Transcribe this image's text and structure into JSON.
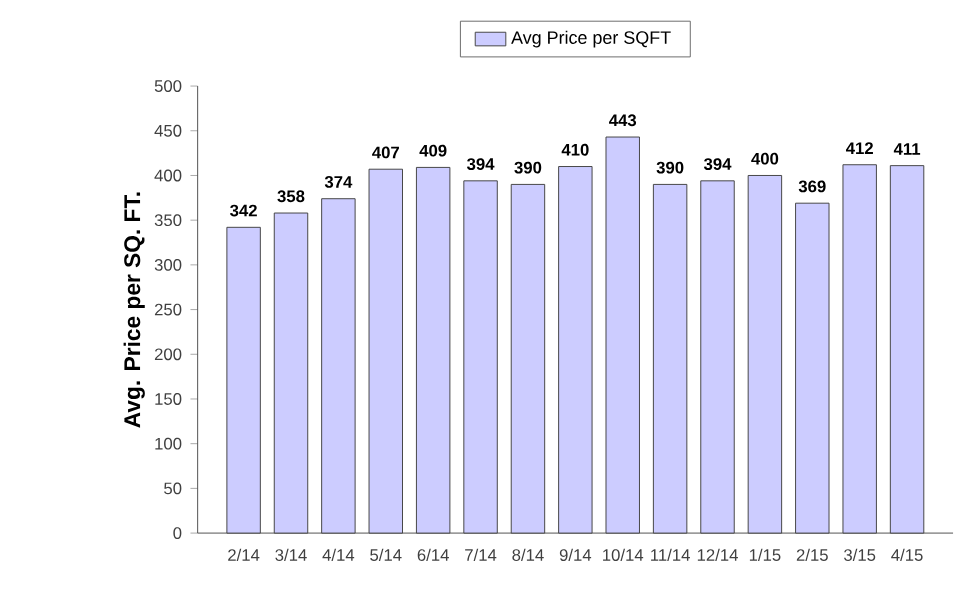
{
  "chart_data": {
    "type": "bar",
    "ylabel": "Avg. Price per SQ. FT.",
    "categories": [
      "2/14",
      "3/14",
      "4/14",
      "5/14",
      "6/14",
      "7/14",
      "8/14",
      "9/14",
      "10/14",
      "11/14",
      "12/14",
      "1/15",
      "2/15",
      "3/15",
      "4/15"
    ],
    "series": [
      {
        "name": "Avg Price per SQFT",
        "color": "#ccccff",
        "values": [
          342,
          358,
          374,
          407,
          409,
          394,
          390,
          410,
          443,
          390,
          394,
          400,
          369,
          412,
          411
        ]
      }
    ],
    "ylim": [
      0,
      500
    ],
    "yticks": [
      0,
      50,
      100,
      150,
      200,
      250,
      300,
      350,
      400,
      450,
      500
    ],
    "data_labels": true,
    "legend": "top",
    "grid": false
  }
}
